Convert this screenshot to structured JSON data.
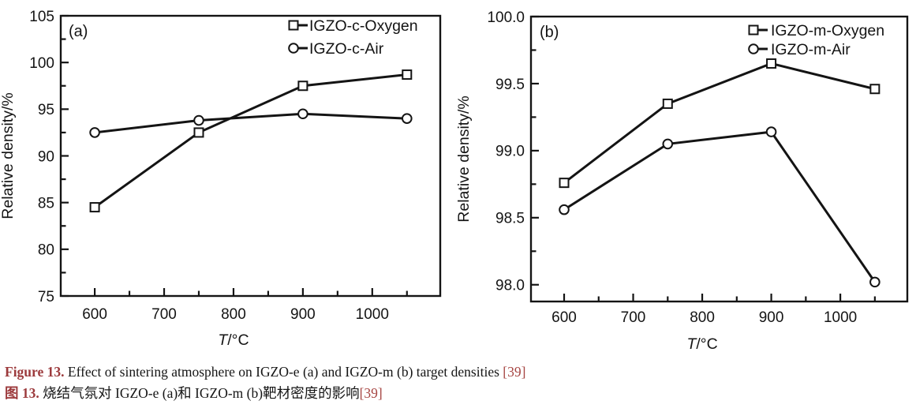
{
  "page": {
    "background": "#ffffff"
  },
  "colors": {
    "ink": "#141414",
    "marker_fill": "#ffffff",
    "caption_label": "#9c3a3c",
    "reference": "#a64542"
  },
  "caption": {
    "en": {
      "label": "Figure 13.",
      "body": " Effect of sintering atmosphere on IGZO-e (a) and IGZO-m (b) target densities ",
      "ref": "[39]"
    },
    "zh": {
      "label": "图 13.",
      "body": " 烧结气氛对 IGZO-e (a)和 IGZO-m (b)靶材密度的影响",
      "ref": "[39]"
    }
  },
  "chart_data": [
    {
      "type": "line",
      "panel_label": "(a)",
      "x": [
        600,
        750,
        900,
        1050
      ],
      "series": [
        {
          "name": "IGZO-c-Oxygen",
          "marker": "square",
          "values": [
            84.5,
            92.5,
            97.5,
            98.7
          ]
        },
        {
          "name": "IGZO-c-Air",
          "marker": "circle",
          "values": [
            92.5,
            93.8,
            94.5,
            94.0
          ]
        }
      ],
      "xlabel_italic": "T",
      "xlabel_rest": "/°C",
      "ylabel": "Relative density/%",
      "xlim": [
        551,
        1098
      ],
      "ylim": [
        75,
        105
      ],
      "x_major_ticks": [
        600,
        700,
        800,
        900,
        1000
      ],
      "x_minor_step": 50,
      "y_major_ticks": [
        75,
        80,
        85,
        90,
        95,
        100,
        105
      ],
      "y_minor_step": 2.5,
      "y_decimals": 0,
      "grid": false,
      "legend_position": "top-right"
    },
    {
      "type": "line",
      "panel_label": "(b)",
      "x": [
        600,
        750,
        900,
        1050
      ],
      "series": [
        {
          "name": "IGZO-m-Oxygen",
          "marker": "square",
          "values": [
            98.76,
            99.35,
            99.65,
            99.46
          ]
        },
        {
          "name": "IGZO-m-Air",
          "marker": "circle",
          "values": [
            98.56,
            99.05,
            99.14,
            98.02
          ]
        }
      ],
      "xlabel_italic": "T",
      "xlabel_rest": "/°C",
      "ylabel": "Relative density/%",
      "xlim": [
        552,
        1097
      ],
      "ylim": [
        97.875,
        100.0
      ],
      "x_major_ticks": [
        600,
        700,
        800,
        900,
        1000
      ],
      "x_minor_step": 50,
      "y_major_ticks": [
        98.0,
        98.5,
        99.0,
        99.5,
        100.0
      ],
      "y_minor_step": 0.25,
      "y_decimals": 1,
      "grid": false,
      "legend_position": "top-right"
    }
  ]
}
